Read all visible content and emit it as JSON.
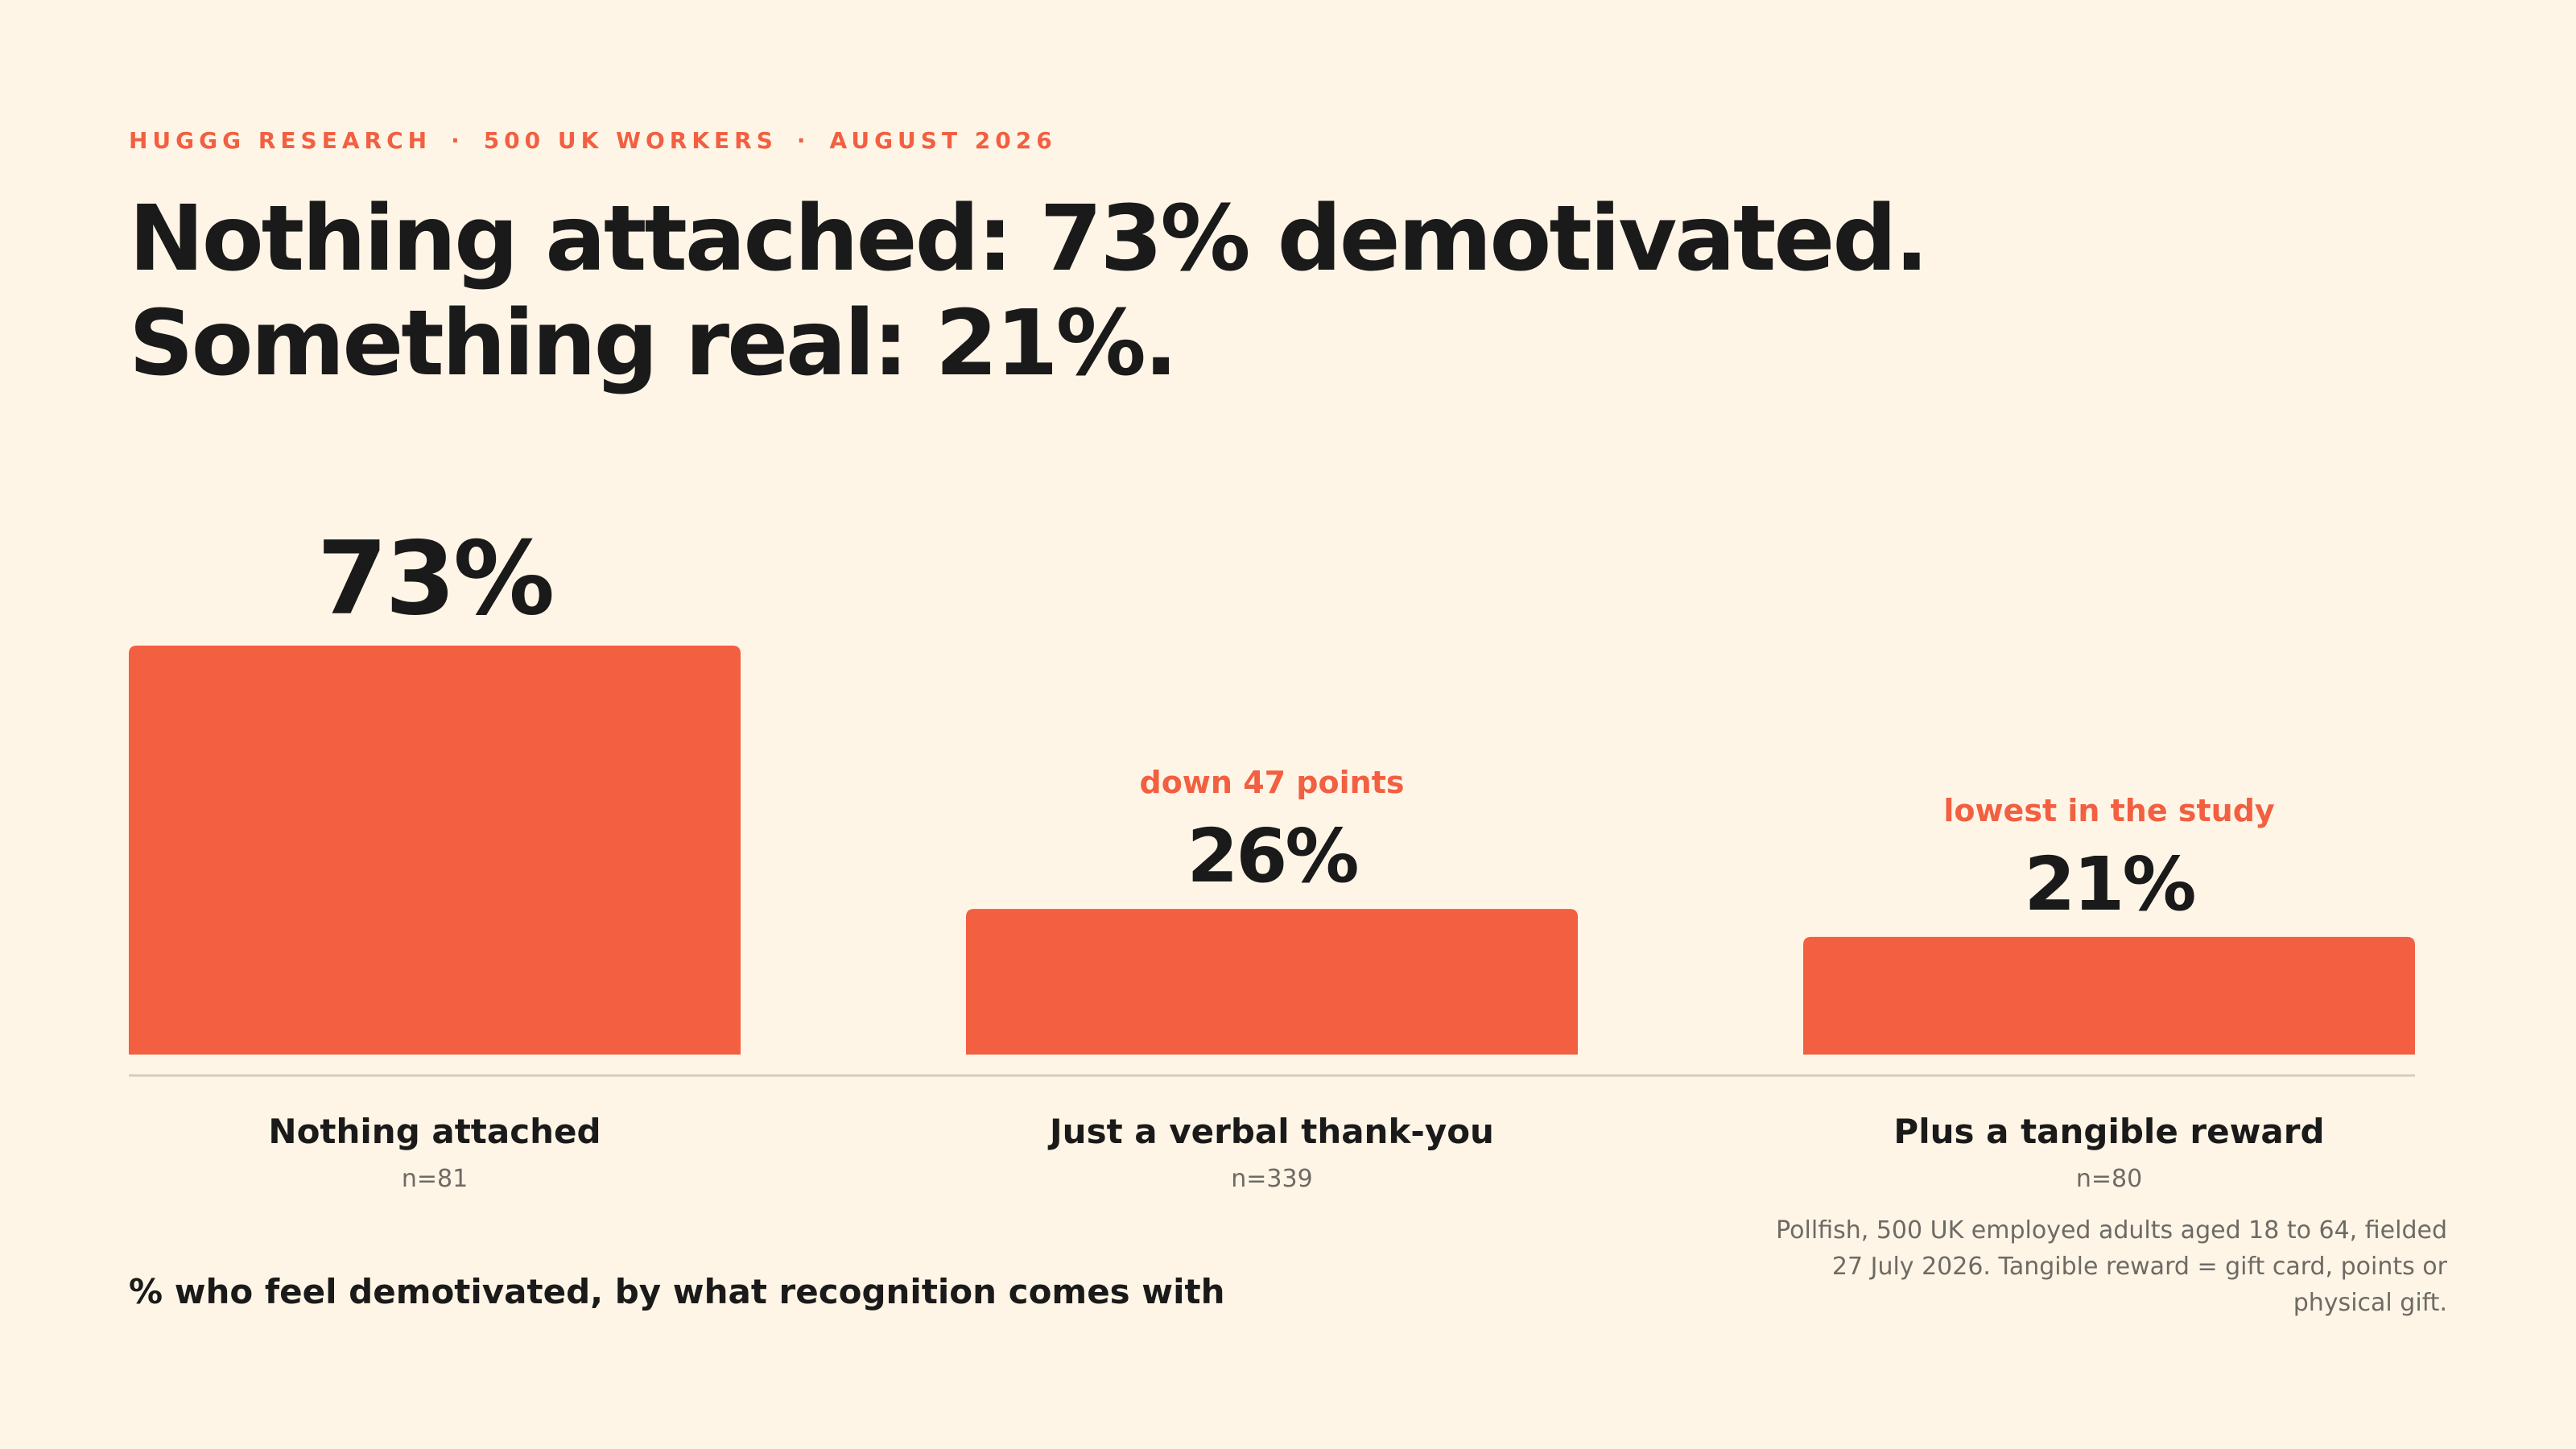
{
  "header": {
    "eyebrow": [
      "HUGGG RESEARCH",
      "500 UK WORKERS",
      "AUGUST 2026"
    ],
    "separator": "·",
    "headline_line1": "Nothing attached: 73% demotivated.",
    "headline_line2": "Something real: 21%."
  },
  "chart_data": {
    "type": "bar",
    "title": "Nothing attached: 73% demotivated. Something real: 21%.",
    "subtitle": "% who feel demotivated, by what recognition comes with",
    "categories": [
      "Nothing attached",
      "Just a verbal thank-you",
      "Plus a tangible reward"
    ],
    "values": [
      73,
      26,
      21
    ],
    "value_labels": [
      "73%",
      "26%",
      "21%"
    ],
    "sample_sizes": [
      "n=81",
      "n=339",
      "n=80"
    ],
    "annotations": [
      "",
      "down 47 points",
      "lowest in the study"
    ],
    "ylim": [
      0,
      73
    ],
    "grid": false,
    "legend": "none"
  },
  "footer": {
    "source": "Pollfish, 500 UK employed adults aged 18 to 64, fielded 27 July 2026. Tangible reward = gift card, points or physical gift."
  },
  "colors": {
    "background": "#FEF5E6",
    "bar": "#F25F41",
    "accent": "#F25F41",
    "text": "#1A1A1A",
    "muted": "#6E6A64",
    "baseline": "#D3CCC1"
  }
}
